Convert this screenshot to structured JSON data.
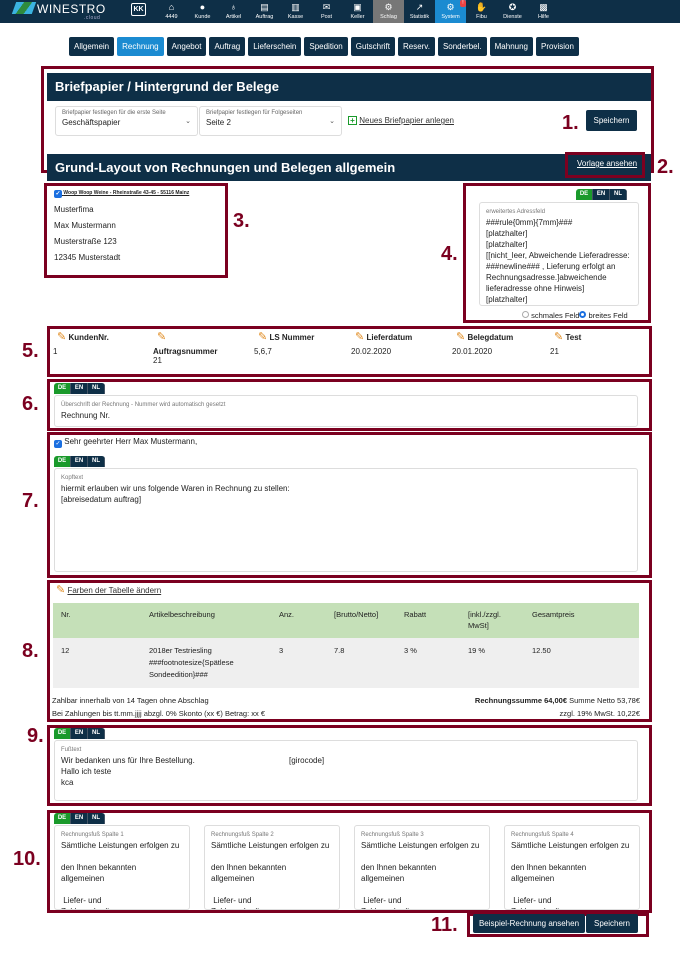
{
  "brand": {
    "name": "WINESTRO",
    "sub": ".cloud",
    "colors": {
      "dark": "#0e2f47",
      "accent": "#1b8bd1",
      "green": "#1a9a2b",
      "annotation": "#7b0020"
    }
  },
  "topnav": {
    "back_icon": "KK",
    "items": [
      {
        "label": "4449",
        "icon": "home-icon"
      },
      {
        "label": "Kunde",
        "icon": "user-icon"
      },
      {
        "label": "Artikel",
        "icon": "bottle-icon"
      },
      {
        "label": "Auftrag",
        "icon": "document-icon"
      },
      {
        "label": "Kasse",
        "icon": "register-icon"
      },
      {
        "label": "Post",
        "icon": "mail-icon"
      },
      {
        "label": "Keller",
        "icon": "warehouse-icon"
      },
      {
        "label": "Schlag",
        "icon": "tractor-icon",
        "state": "hover"
      },
      {
        "label": "Statistik",
        "icon": "chart-icon"
      },
      {
        "label": "System",
        "icon": "gear-icon",
        "state": "active",
        "badge": "!"
      },
      {
        "label": "Fibu",
        "icon": "hand-coin-icon"
      },
      {
        "label": "Dienste",
        "icon": "medal-icon"
      },
      {
        "label": "Hilfe",
        "icon": "help-icon"
      }
    ]
  },
  "tabs": [
    {
      "label": "Allgemein"
    },
    {
      "label": "Rechnung",
      "active": true
    },
    {
      "label": "Angebot"
    },
    {
      "label": "Auftrag"
    },
    {
      "label": "Lieferschein"
    },
    {
      "label": "Spedition"
    },
    {
      "label": "Gutschrift"
    },
    {
      "label": "Reserv."
    },
    {
      "label": "Sonderbel."
    },
    {
      "label": "Mahnung"
    },
    {
      "label": "Provision"
    }
  ],
  "annotations": [
    "1.",
    "2.",
    "3.",
    "4.",
    "5.",
    "6.",
    "7.",
    "8.",
    "9.",
    "10.",
    "11."
  ],
  "briefpapier": {
    "title": "Briefpapier / Hintergrund der Belege",
    "first": {
      "label": "Briefpapier festlegen für die erste Seite",
      "value": "Geschäftspapier"
    },
    "following": {
      "label": "Briefpapier festlegen für Folgeseiten",
      "value": "Seite 2"
    },
    "new_link": "Neues Briefpapier anlegen",
    "save": "Speichern"
  },
  "layout": {
    "title": "Grund-Layout von Rechnungen und Belegen allgemein",
    "preview_link": "Vorlage ansehen"
  },
  "address": {
    "sender": "Woop Woop Weine - Rheinstraße 43-45 - 55116 Mainz",
    "lines": [
      "Musterfima",
      "Max Mustermann",
      "Musterstraße 123",
      "12345 Musterstadt"
    ]
  },
  "languages": [
    "DE",
    "EN",
    "NL"
  ],
  "extended_address": {
    "label": "erweitertes Adressfeld",
    "text": "###rule{0mm}{7mm}###\n[platzhalter]\n[platzhalter]\n[[nicht_leer, Abweichende Lieferadresse: ###newline### , Lieferung erfolgt an Rechnungsadresse.]abweichende lieferadresse ohne Hinweis]\n[platzhalter]",
    "option_narrow": "schmales Feld",
    "option_wide": "breites Feld",
    "selected": "breites Feld"
  },
  "fields": [
    {
      "label": "KundenNr.",
      "value": "1"
    },
    {
      "label": "Auftragsnummer",
      "value": "21"
    },
    {
      "label": "LS Nummer",
      "value": "5,6,7"
    },
    {
      "label": "Lieferdatum",
      "value": "20.02.2020"
    },
    {
      "label": "Belegdatum",
      "value": "20.01.2020"
    },
    {
      "label": "Test",
      "value": "21"
    }
  ],
  "heading": {
    "label": "Überschrift der Rechnung - Nummer wird automatisch gesetzt",
    "value": "Rechnung Nr."
  },
  "salutation": "Sehr geehrter Herr Max Mustermann,",
  "head_text": {
    "label": "Kopftext",
    "text": "hiermit erlauben wir uns folgende Waren in Rechnung zu stellen:\n[abreisedatum auftrag]"
  },
  "table": {
    "color_link": "Farben der Tabelle ändern",
    "headers": [
      "Nr.",
      "Artikelbeschreibung",
      "Anz.",
      "[Brutto/Netto]",
      "Rabatt",
      "[inkl./zzgl. MwSt]",
      "Gesamtpreis"
    ],
    "rows": [
      [
        "12",
        "2018er Testriesling ###footnotesize{Spätlese Sondeedition}###",
        "3",
        "7.8",
        "3 %",
        "19 %",
        "12.50"
      ]
    ],
    "header_color": "#c5e0b8",
    "payment1": "Zahlbar innerhalb von 14 Tagen ohne Abschlag",
    "payment2": "Bei Zahlungen bis tt.mm.jjjj abzgl. 0% Skonto (xx €) Betrag: xx €",
    "total_label": "Rechnungssumme 64,00€",
    "net": "Summe Netto 53,78€",
    "vat": "zzgl. 19% MwSt. 10,22€"
  },
  "footer_text": {
    "label": "Fußtext",
    "text": "Wir bedanken uns für Ihre Bestellung.\nHallo ich teste\nkca\n\ndkasopadfs",
    "girocode": "[girocode]"
  },
  "footer_cols": [
    {
      "label": "Rechnungsfuß Spalte 1",
      "text": "Sämtliche Leistungen erfolgen zu\n\nden Ihnen bekannten\nallgemeinen\n\n Liefer- und\nZahlungsbedingungen"
    },
    {
      "label": "Rechnungsfuß Spalte 2",
      "text": "Sämtliche Leistungen erfolgen zu\n\nden Ihnen bekannten\nallgemeinen\n\n Liefer- und\nZahlungsbedingungen"
    },
    {
      "label": "Rechnungsfuß Spalte 3",
      "text": "Sämtliche Leistungen erfolgen zu\n\nden Ihnen bekannten\nallgemeinen\n\n Liefer- und\nZahlungsbedingungen"
    },
    {
      "label": "Rechnungsfuß Spalte 4",
      "text": "Sämtliche Leistungen erfolgen zu\n\nden Ihnen bekannten\nallgemeinen\n\n Liefer- und\nZahlungsbedingungen"
    }
  ],
  "bottom": {
    "preview": "Beispiel-Rechnung ansehen",
    "save": "Speichern"
  }
}
